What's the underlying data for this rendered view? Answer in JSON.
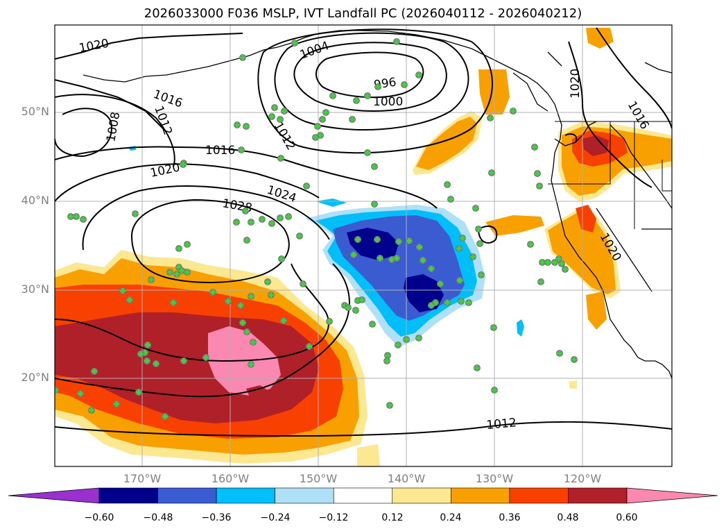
{
  "title": "2026033000 F036 MSLP, IVT Landfall PC (2026040112 - 2026040212)",
  "map": {
    "lat_labels": [
      "50°N",
      "40°N",
      "30°N",
      "20°N"
    ],
    "lon_labels": [
      "170°W",
      "160°W",
      "150°W",
      "140°W",
      "130°W",
      "120°W"
    ],
    "isobar_labels": [
      "1020",
      "1016",
      "1008",
      "1012",
      "1004",
      "996",
      "1000",
      "1012",
      "1016",
      "1020",
      "1024",
      "1028",
      "1012",
      "1020",
      "1016",
      "1020"
    ],
    "colors": {
      "strong_negative": "#0a0a8a",
      "moderate_negative": "#3a5ad0",
      "weak_negative": "#00b8f8",
      "very_weak_negative": "#b0e0f8",
      "weak_positive": "#fce890",
      "low_positive": "#f8a000",
      "moderate_positive": "#f84000",
      "high_positive": "#b02028",
      "extreme_positive": "#fa88b0",
      "marker": "#40d040"
    }
  },
  "colorbar": {
    "ticks": [
      "−0.60",
      "−0.48",
      "−0.36",
      "−0.24",
      "−0.12",
      "0.12",
      "0.24",
      "0.36",
      "0.48",
      "0.60"
    ],
    "colors": [
      "#9a30d0",
      "#00008c",
      "#3a5cd0",
      "#00bff8",
      "#b0e0f8",
      "#ffffff",
      "#fce890",
      "#f8a000",
      "#f84000",
      "#b02028",
      "#fa88b0"
    ]
  }
}
